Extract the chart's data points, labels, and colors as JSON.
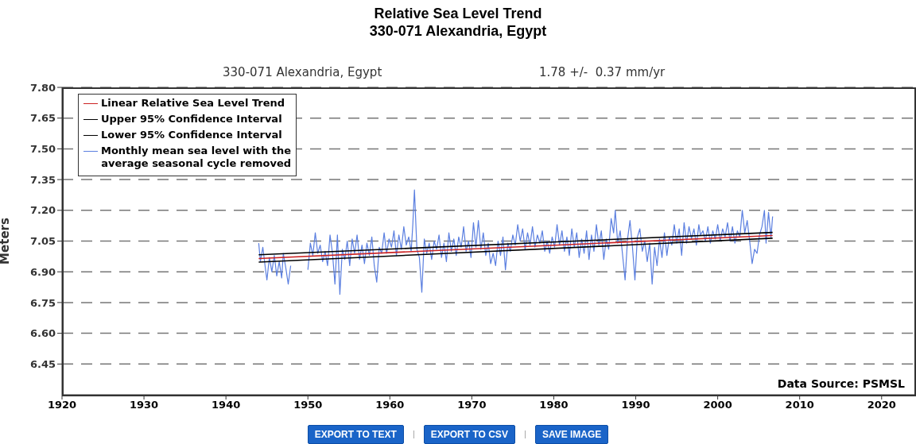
{
  "chart_data": {
    "type": "line",
    "title": "Relative Sea Level Trend\n330-071 Alexandria, Egypt",
    "subtitle": "330-071 Alexandria, Egypt",
    "ylabel": "Meters",
    "annotations": [
      "1.78 +/-  0.37 mm/yr",
      "Data Source: PSMSL",
      "EXPORT TO TEXT",
      "EXPORT TO CSV",
      "SAVE IMAGE"
    ],
    "xlim": [
      1920,
      2024
    ],
    "xticks": [
      1920,
      1930,
      1940,
      1950,
      1960,
      1970,
      1980,
      1990,
      2000,
      2010,
      2020
    ],
    "ylim": [
      6.3,
      7.8
    ],
    "yticks": [
      {
        "value": 6.45,
        "label": "6.45"
      },
      {
        "value": 6.6,
        "label": "6.60"
      },
      {
        "value": 6.75,
        "label": "6.75"
      },
      {
        "value": 6.9,
        "label": "6.90"
      },
      {
        "value": 7.05,
        "label": "7.05"
      },
      {
        "value": 7.2,
        "label": "7.20"
      },
      {
        "value": 7.35,
        "label": "7.35"
      },
      {
        "value": 7.5,
        "label": "7.50"
      },
      {
        "value": 7.65,
        "label": "7.65"
      },
      {
        "value": 7.8,
        "label": "7.80"
      }
    ],
    "grid": "y",
    "legend": "top left",
    "marker": "none",
    "line_style": "solid",
    "series": [
      {
        "name": "Monthly mean sea level with the\naverage seasonal cycle removed",
        "color": "#5b7fe0",
        "x": [
          1944.0,
          1944.2,
          1944.5,
          1944.8,
          1945.0,
          1945.3,
          1945.6,
          1945.9,
          1946.2,
          1946.5,
          1946.8,
          1947.0,
          1947.3,
          1947.6,
          1947.9,
          1949.0,
          1950.0,
          1950.3,
          1950.6,
          1950.9,
          1951.2,
          1951.5,
          1951.8,
          1952.1,
          1952.4,
          1952.7,
          1953.0,
          1953.3,
          1953.6,
          1953.9,
          1954.2,
          1954.5,
          1954.8,
          1955.1,
          1955.4,
          1955.7,
          1956.0,
          1956.3,
          1956.6,
          1956.9,
          1957.2,
          1957.5,
          1957.8,
          1958.1,
          1958.4,
          1958.7,
          1959.0,
          1959.3,
          1959.6,
          1959.9,
          1960.2,
          1960.5,
          1960.8,
          1961.1,
          1961.4,
          1961.7,
          1962.0,
          1962.3,
          1962.6,
          1962.8,
          1963.0,
          1963.3,
          1963.6,
          1963.9,
          1964.2,
          1964.5,
          1964.8,
          1965.1,
          1965.4,
          1965.7,
          1966.0,
          1966.3,
          1966.6,
          1966.9,
          1967.2,
          1967.5,
          1967.8,
          1968.1,
          1968.4,
          1968.7,
          1969.0,
          1969.3,
          1969.6,
          1969.9,
          1970.2,
          1970.5,
          1970.8,
          1971.1,
          1971.4,
          1971.7,
          1972.0,
          1972.3,
          1972.6,
          1972.9,
          1973.2,
          1973.5,
          1973.8,
          1974.1,
          1974.4,
          1974.7,
          1975.0,
          1975.3,
          1975.6,
          1975.9,
          1976.2,
          1976.5,
          1976.8,
          1977.1,
          1977.4,
          1977.7,
          1978.0,
          1978.3,
          1978.6,
          1978.9,
          1979.2,
          1979.5,
          1979.8,
          1980.1,
          1980.4,
          1980.7,
          1981.0,
          1981.3,
          1981.6,
          1981.9,
          1982.2,
          1982.5,
          1982.8,
          1983.1,
          1983.4,
          1983.7,
          1984.0,
          1984.3,
          1984.6,
          1984.9,
          1985.2,
          1985.5,
          1985.8,
          1986.1,
          1986.4,
          1986.7,
          1987.0,
          1987.3,
          1987.5,
          1987.8,
          1988.1,
          1988.4,
          1988.7,
          1989.0,
          1989.3,
          1989.6,
          1989.9,
          1990.2,
          1990.5,
          1990.8,
          1991.1,
          1991.4,
          1991.7,
          1992.0,
          1992.3,
          1992.6,
          1992.9,
          1993.2,
          1993.5,
          1993.8,
          1994.1,
          1994.4,
          1994.7,
          1995.0,
          1995.3,
          1995.6,
          1995.9,
          1996.2,
          1996.5,
          1996.8,
          1997.1,
          1997.4,
          1997.7,
          1997.9,
          1998.2,
          1998.5,
          1998.8,
          1999.1,
          1999.4,
          1999.7,
          2000.0,
          2000.3,
          2000.6,
          2000.9,
          2001.2,
          2001.5,
          2001.8,
          2002.1,
          2002.4,
          2002.7,
          2003.0,
          2003.3,
          2003.6,
          2003.9,
          2004.2,
          2004.5,
          2004.8,
          2005.1,
          2005.4,
          2005.7,
          2005.9,
          2006.2,
          2006.5,
          2006.7
        ],
        "values": [
          7.04,
          6.95,
          7.02,
          6.92,
          6.86,
          6.97,
          6.9,
          6.98,
          6.88,
          6.95,
          6.87,
          6.99,
          6.92,
          6.84,
          6.93,
          null,
          6.91,
          7.04,
          6.98,
          7.09,
          6.99,
          7.03,
          6.95,
          7.0,
          6.93,
          7.08,
          6.99,
          6.84,
          7.08,
          6.79,
          7.01,
          6.96,
          7.05,
          6.93,
          7.06,
          6.99,
          7.08,
          6.96,
          7.03,
          6.94,
          7.04,
          6.98,
          7.07,
          6.93,
          6.85,
          7.02,
          6.99,
          7.09,
          6.99,
          7.06,
          7.02,
          7.1,
          6.98,
          7.08,
          7.01,
          7.12,
          7.03,
          7.07,
          7.0,
          7.13,
          7.3,
          7.01,
          6.97,
          6.8,
          7.06,
          6.99,
          7.04,
          6.96,
          7.05,
          7.01,
          7.08,
          6.97,
          7.04,
          6.95,
          7.09,
          7.0,
          7.06,
          6.98,
          7.07,
          7.02,
          7.12,
          7.0,
          7.05,
          6.97,
          7.14,
          7.02,
          7.15,
          7.01,
          7.09,
          6.98,
          7.04,
          6.94,
          6.99,
          6.93,
          7.05,
          6.98,
          7.07,
          6.91,
          7.04,
          7.0,
          7.08,
          7.03,
          7.13,
          7.05,
          7.11,
          7.01,
          7.09,
          7.03,
          7.12,
          7.02,
          7.08,
          7.04,
          7.1,
          7.0,
          7.05,
          6.99,
          7.07,
          7.02,
          7.13,
          7.03,
          7.1,
          7.0,
          7.07,
          6.98,
          7.11,
          7.02,
          7.09,
          6.97,
          7.06,
          6.99,
          7.1,
          6.96,
          7.08,
          7.0,
          7.13,
          7.03,
          7.1,
          6.96,
          7.06,
          7.01,
          7.16,
          7.09,
          7.2,
          7.04,
          7.1,
          6.98,
          6.86,
          7.06,
          7.15,
          7.02,
          6.86,
          7.07,
          7.11,
          7.0,
          7.05,
          6.95,
          7.04,
          6.84,
          7.02,
          6.93,
          7.06,
          6.97,
          7.09,
          6.98,
          7.07,
          7.03,
          7.13,
          7.04,
          7.11,
          6.98,
          7.14,
          7.04,
          7.12,
          7.06,
          7.11,
          7.03,
          7.13,
          7.08,
          7.1,
          7.05,
          7.12,
          7.04,
          7.1,
          7.06,
          7.13,
          7.05,
          7.11,
          7.07,
          7.14,
          7.05,
          7.12,
          7.04,
          7.1,
          7.07,
          7.2,
          7.09,
          7.15,
          7.05,
          6.94,
          7.01,
          6.99,
          7.08,
          7.12,
          7.2,
          7.04,
          7.19,
          7.07,
          7.17
        ]
      },
      {
        "name": "Linear Relative Sea Level Trend",
        "color": "#cc2222",
        "x": [
          1944.0,
          2006.7
        ],
        "values": [
          6.965,
          7.077
        ]
      },
      {
        "name": "Upper 95% Confidence Interval",
        "color": "#000000",
        "x": [
          1944.0,
          2006.7
        ],
        "values": [
          6.983,
          7.092
        ]
      },
      {
        "name": "Lower 95% Confidence Interval",
        "color": "#000000",
        "x": [
          1944.0,
          2006.7
        ],
        "values": [
          6.947,
          7.064
        ]
      }
    ]
  }
}
